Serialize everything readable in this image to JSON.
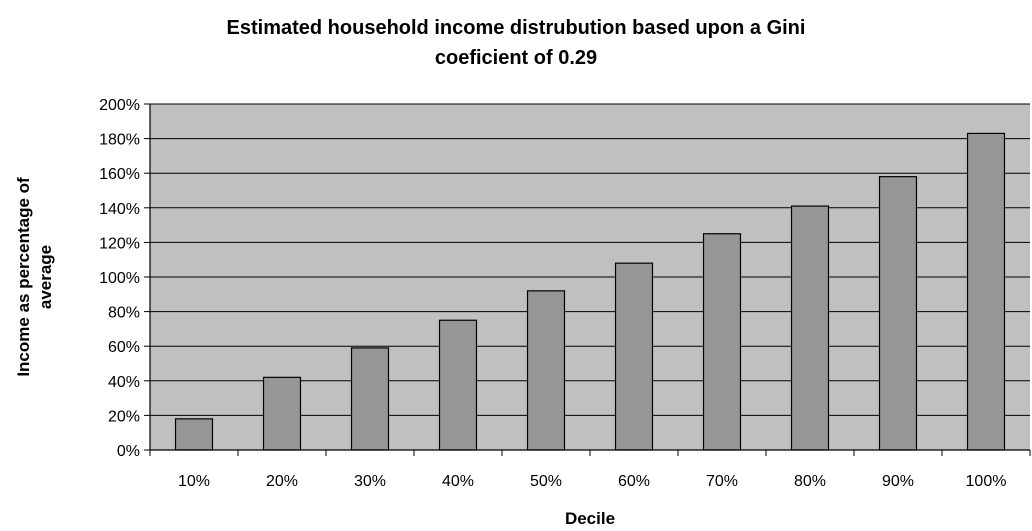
{
  "chart_data": {
    "type": "bar",
    "title_lines": [
      "Estimated household income distrubution based upon a Gini",
      "coeficient of 0.29"
    ],
    "xlabel": "Decile",
    "ylabel_lines": [
      "Income as percentage of",
      "average"
    ],
    "categories": [
      "10%",
      "20%",
      "30%",
      "40%",
      "50%",
      "60%",
      "70%",
      "80%",
      "90%",
      "100%"
    ],
    "values": [
      18,
      42,
      59,
      75,
      92,
      108,
      125,
      141,
      158,
      183
    ],
    "ylim": [
      0,
      200
    ],
    "yticks": [
      "0%",
      "20%",
      "40%",
      "60%",
      "80%",
      "100%",
      "120%",
      "140%",
      "160%",
      "180%",
      "200%"
    ],
    "grid": true,
    "legend": "none",
    "colors": {
      "plot_background": "#c0c0c0",
      "bar_fill": "#969696",
      "bar_stroke": "#000000",
      "gridline": "#000000"
    }
  }
}
